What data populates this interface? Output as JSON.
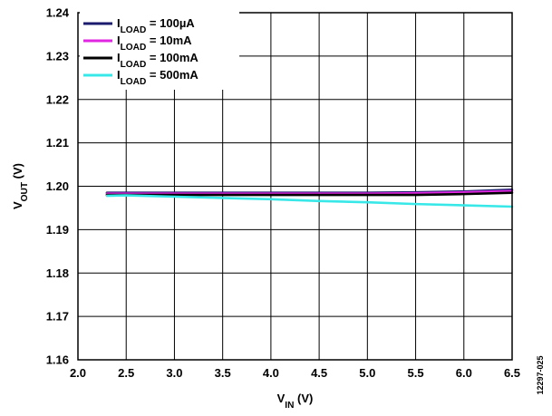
{
  "chart_data": {
    "type": "line",
    "xlabel": {
      "main": "V",
      "sub": "IN",
      "unit": "(V)"
    },
    "ylabel": {
      "main": "V",
      "sub": "OUT",
      "unit": "(V)"
    },
    "xlim": [
      2.0,
      6.5
    ],
    "ylim": [
      1.16,
      1.24
    ],
    "x_ticks": [
      2.0,
      2.5,
      3.0,
      3.5,
      4.0,
      4.5,
      5.0,
      5.5,
      6.0,
      6.5
    ],
    "y_ticks": [
      1.16,
      1.17,
      1.18,
      1.19,
      1.2,
      1.21,
      1.22,
      1.23,
      1.24
    ],
    "x_tick_labels": [
      "2.0",
      "2.5",
      "3.0",
      "3.5",
      "4.0",
      "4.5",
      "5.0",
      "5.5",
      "6.0",
      "6.5"
    ],
    "y_tick_labels": [
      "1.16",
      "1.17",
      "1.18",
      "1.19",
      "1.20",
      "1.21",
      "1.22",
      "1.23",
      "1.24"
    ],
    "grid": true,
    "legend_position": "top-left",
    "figure_id": "12297-025",
    "series": [
      {
        "name": {
          "main": "I",
          "sub": "LOAD",
          "rest": " = 100µA"
        },
        "color": "#1c1c6e",
        "x": [
          2.3,
          2.5,
          3.0,
          3.5,
          4.0,
          4.5,
          5.0,
          5.5,
          6.0,
          6.5
        ],
        "values": [
          1.1985,
          1.1985,
          1.1985,
          1.1985,
          1.1985,
          1.1985,
          1.1985,
          1.1986,
          1.1988,
          1.1992
        ]
      },
      {
        "name": {
          "main": "I",
          "sub": "LOAD",
          "rest": " = 10mA"
        },
        "color": "#e026e0",
        "x": [
          2.3,
          2.5,
          3.0,
          3.5,
          4.0,
          4.5,
          5.0,
          5.5,
          6.0,
          6.5
        ],
        "values": [
          1.1983,
          1.1983,
          1.1983,
          1.1983,
          1.1983,
          1.1983,
          1.1983,
          1.1984,
          1.1986,
          1.1989
        ]
      },
      {
        "name": {
          "main": "I",
          "sub": "LOAD",
          "rest": " = 100mA"
        },
        "color": "#000000",
        "x": [
          2.3,
          2.5,
          3.0,
          3.5,
          4.0,
          4.5,
          5.0,
          5.5,
          6.0,
          6.5
        ],
        "values": [
          1.198,
          1.198,
          1.198,
          1.198,
          1.198,
          1.198,
          1.198,
          1.198,
          1.1982,
          1.1985
        ]
      },
      {
        "name": {
          "main": "I",
          "sub": "LOAD",
          "rest": " = 500mA"
        },
        "color": "#38e8e8",
        "x": [
          2.3,
          2.5,
          3.0,
          3.5,
          4.0,
          4.5,
          5.0,
          5.5,
          6.0,
          6.5
        ],
        "values": [
          1.1978,
          1.1979,
          1.1976,
          1.1973,
          1.197,
          1.1966,
          1.1963,
          1.1959,
          1.1956,
          1.1953
        ]
      }
    ]
  }
}
